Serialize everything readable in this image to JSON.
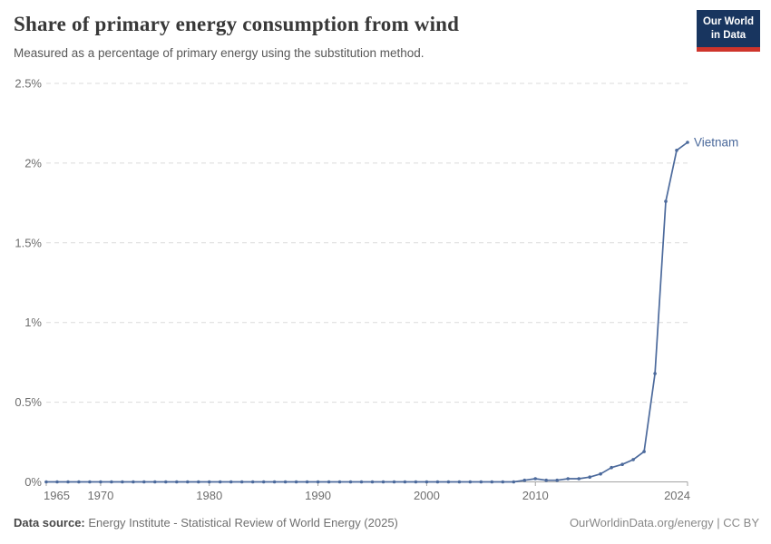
{
  "header": {
    "title": "Share of primary energy consumption from wind",
    "subtitle": "Measured as a percentage of primary energy using the substitution method.",
    "logo_line1": "Our World",
    "logo_line2": "in Data"
  },
  "footer": {
    "source_label": "Data source:",
    "source_text": " Energy Institute - Statistical Review of World Energy (2025)",
    "rights": "OurWorldinData.org/energy | CC BY"
  },
  "colors": {
    "series": "#4C6A9C",
    "logo_bg": "#18355F",
    "logo_red": "#CE342B",
    "grid": "#DBDBDB",
    "axis": "#A3A3A3",
    "tick_text": "#6E6E6E"
  },
  "chart_data": {
    "type": "line",
    "title": "Share of primary energy consumption from wind",
    "subtitle": "Measured as a percentage of primary energy using the substitution method.",
    "xlabel": "",
    "ylabel": "",
    "xlim": [
      1965,
      2024
    ],
    "ylim": [
      0,
      2.5
    ],
    "grid": "horizontal-dashed",
    "legend_position": "end-of-line-label",
    "x_ticks": [
      1965,
      1970,
      1980,
      1990,
      2000,
      2010,
      2024
    ],
    "y_ticks": {
      "values": [
        0,
        0.5,
        1,
        1.5,
        2,
        2.5
      ],
      "labels": [
        "0%",
        "0.5%",
        "1%",
        "1.5%",
        "2%",
        "2.5%"
      ]
    },
    "series": [
      {
        "name": "Vietnam",
        "color": "#4C6A9C",
        "x": [
          1965,
          1966,
          1967,
          1968,
          1969,
          1970,
          1971,
          1972,
          1973,
          1974,
          1975,
          1976,
          1977,
          1978,
          1979,
          1980,
          1981,
          1982,
          1983,
          1984,
          1985,
          1986,
          1987,
          1988,
          1989,
          1990,
          1991,
          1992,
          1993,
          1994,
          1995,
          1996,
          1997,
          1998,
          1999,
          2000,
          2001,
          2002,
          2003,
          2004,
          2005,
          2006,
          2007,
          2008,
          2009,
          2010,
          2011,
          2012,
          2013,
          2014,
          2015,
          2016,
          2017,
          2018,
          2019,
          2020,
          2021,
          2022,
          2023,
          2024
        ],
        "values": [
          0,
          0,
          0,
          0,
          0,
          0,
          0,
          0,
          0,
          0,
          0,
          0,
          0,
          0,
          0,
          0,
          0,
          0,
          0,
          0,
          0,
          0,
          0,
          0,
          0,
          0,
          0,
          0,
          0,
          0,
          0,
          0,
          0,
          0,
          0,
          0,
          0,
          0,
          0,
          0,
          0,
          0,
          0,
          0,
          0.01,
          0.02,
          0.01,
          0.01,
          0.02,
          0.02,
          0.03,
          0.05,
          0.09,
          0.11,
          0.14,
          0.19,
          0.68,
          1.76,
          2.08,
          2.13
        ]
      }
    ]
  }
}
